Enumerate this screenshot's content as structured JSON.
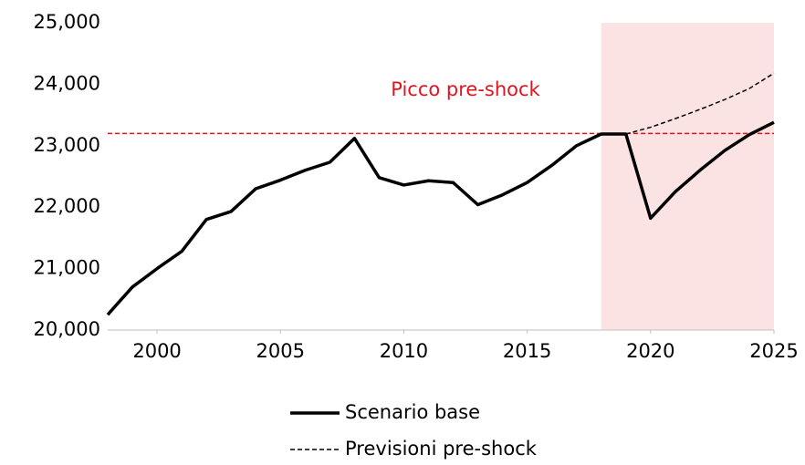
{
  "chart_data": {
    "type": "line",
    "x": [
      1998,
      1999,
      2000,
      2001,
      2002,
      2003,
      2004,
      2005,
      2006,
      2007,
      2008,
      2009,
      2010,
      2011,
      2012,
      2013,
      2014,
      2015,
      2016,
      2017,
      2018,
      2019,
      2020,
      2021,
      2022,
      2023,
      2024,
      2025
    ],
    "series": [
      {
        "name": "Scenario base",
        "color": "#000000",
        "style": "solid",
        "values": [
          20250,
          20700,
          21000,
          21280,
          21800,
          21930,
          22300,
          22440,
          22600,
          22730,
          23120,
          22480,
          22360,
          22430,
          22400,
          22040,
          22200,
          22400,
          22680,
          23000,
          23190,
          23190,
          21820,
          22250,
          22600,
          22920,
          23180,
          23380
        ]
      },
      {
        "name": "Previsioni pre-shock",
        "color": "#000000",
        "style": "dashed",
        "values": [
          null,
          null,
          null,
          null,
          null,
          null,
          null,
          null,
          null,
          null,
          null,
          null,
          null,
          null,
          null,
          null,
          null,
          null,
          null,
          null,
          null,
          23190,
          23300,
          23440,
          23590,
          23750,
          23930,
          24180
        ]
      }
    ],
    "xlim": [
      1998,
      2025
    ],
    "xticks": [
      2000,
      2005,
      2010,
      2015,
      2020,
      2025
    ],
    "ylim": [
      20000,
      25000
    ],
    "yticks": [
      {
        "value": 20000,
        "label": "20,000"
      },
      {
        "value": 21000,
        "label": "21,000"
      },
      {
        "value": 22000,
        "label": "22,000"
      },
      {
        "value": 23000,
        "label": "23,000"
      },
      {
        "value": 24000,
        "label": "24,000"
      },
      {
        "value": 25000,
        "label": "25,000"
      }
    ],
    "reference_line": {
      "value": 23200,
      "label": "Picco pre-shock",
      "color": "#e0141e"
    },
    "shaded_region": {
      "x": [
        2018,
        2025
      ],
      "color": "#fbe3e4"
    },
    "legend": "bottom"
  }
}
